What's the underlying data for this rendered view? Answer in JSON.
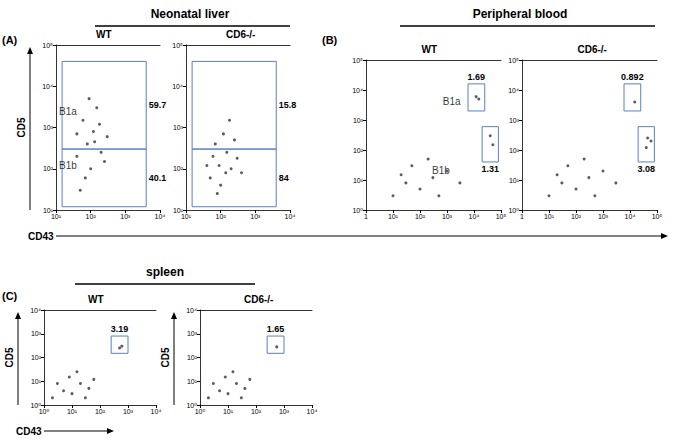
{
  "chart_data": [
    {
      "type": "scatter",
      "panel": "(A)",
      "group": "Neonatal liver",
      "title": "WT",
      "xlabel": "CD43",
      "ylabel": "CD5",
      "log": true,
      "xlim": [
        10,
        10000
      ],
      "xticks": [
        {
          "value": 10,
          "label": "10¹"
        },
        {
          "value": 100,
          "label": "10²"
        },
        {
          "value": 1000,
          "label": "10³"
        },
        {
          "value": 10000,
          "label": "10⁴"
        }
      ],
      "ylim": [
        10,
        100000
      ],
      "yticks": [
        {
          "value": 10,
          "label": "10¹"
        },
        {
          "value": 100,
          "label": "10²"
        },
        {
          "value": 1000,
          "label": "10³"
        },
        {
          "value": 10000,
          "label": "10⁴"
        },
        {
          "value": 100000,
          "label": "10⁵"
        }
      ],
      "points": [
        [
          40,
          200
        ],
        [
          80,
          400
        ],
        [
          120,
          800
        ],
        [
          60,
          1500
        ],
        [
          150,
          3000
        ],
        [
          100,
          100
        ],
        [
          200,
          250
        ],
        [
          70,
          60
        ],
        [
          300,
          600
        ],
        [
          50,
          30
        ],
        [
          180,
          1200
        ],
        [
          90,
          5000
        ],
        [
          250,
          150
        ],
        [
          130,
          450
        ],
        [
          40,
          700
        ]
      ],
      "gates": [
        {
          "x": [
            15,
            4000
          ],
          "y": [
            300,
            40000
          ],
          "value": 59.7
        },
        {
          "x": [
            15,
            4000
          ],
          "y": [
            12,
            300
          ],
          "value": 40.1
        }
      ],
      "annotations": [
        {
          "text": "B1a",
          "x": 22,
          "y": 2500
        },
        {
          "text": "B1b",
          "x": 22,
          "y": 120
        }
      ]
    },
    {
      "type": "scatter",
      "title": "CD6-/-",
      "log": true,
      "xlim": [
        10,
        10000
      ],
      "xticks": [
        {
          "value": 10,
          "label": "10¹"
        },
        {
          "value": 100,
          "label": "10²"
        },
        {
          "value": 1000,
          "label": "10³"
        },
        {
          "value": 10000,
          "label": "10⁴"
        }
      ],
      "ylim": [
        10,
        100000
      ],
      "yticks": [
        {
          "value": 10,
          "label": "10¹"
        },
        {
          "value": 100,
          "label": "10²"
        },
        {
          "value": 1000,
          "label": "10³"
        },
        {
          "value": 10000,
          "label": "10⁴"
        },
        {
          "value": 100000,
          "label": "10⁵"
        }
      ],
      "points": [
        [
          50,
          60
        ],
        [
          90,
          120
        ],
        [
          150,
          250
        ],
        [
          70,
          400
        ],
        [
          200,
          100
        ],
        [
          100,
          40
        ],
        [
          300,
          180
        ],
        [
          60,
          200
        ],
        [
          120,
          700
        ],
        [
          250,
          500
        ],
        [
          80,
          25
        ],
        [
          180,
          1500
        ],
        [
          400,
          80
        ],
        [
          40,
          120
        ],
        [
          140,
          80
        ]
      ],
      "gates": [
        {
          "x": [
            15,
            4000
          ],
          "y": [
            300,
            40000
          ],
          "value": 15.8
        },
        {
          "x": [
            15,
            4000
          ],
          "y": [
            12,
            300
          ],
          "value": 84
        }
      ],
      "annotations": []
    },
    {
      "type": "scatter",
      "panel": "(B)",
      "group": "Peripheral blood",
      "title": "WT",
      "log": true,
      "xlim": [
        1,
        100000
      ],
      "xticks": [
        1,
        {
          "value": 10,
          "label": "10¹"
        },
        {
          "value": 100,
          "label": "10²"
        },
        {
          "value": 1000,
          "label": "10³"
        },
        {
          "value": 10000,
          "label": "10⁴"
        },
        {
          "value": 100000,
          "label": "10⁵"
        }
      ],
      "ylim": [
        1,
        100000
      ],
      "yticks": [
        {
          "value": 1,
          "label": "10⁰"
        },
        {
          "value": 10,
          "label": "10¹"
        },
        {
          "value": 100,
          "label": "10²"
        },
        {
          "value": 1000,
          "label": "10³"
        },
        {
          "value": 10000,
          "label": "10⁴"
        },
        {
          "value": 100000,
          "label": "10⁵"
        }
      ],
      "points": [
        [
          10,
          3
        ],
        [
          30,
          8
        ],
        [
          100,
          5
        ],
        [
          300,
          12
        ],
        [
          50,
          30
        ],
        [
          1000,
          20
        ],
        [
          200,
          50
        ],
        [
          20,
          15
        ],
        [
          3000,
          8
        ],
        [
          500,
          3
        ],
        [
          15000,
          5000
        ],
        [
          12000,
          6000
        ],
        [
          40000,
          300
        ],
        [
          50000,
          150
        ]
      ],
      "gates": [
        {
          "x": [
            6000,
            25000
          ],
          "y": [
            2000,
            16000
          ],
          "value": 1.69
        },
        {
          "x": [
            20000,
            80000
          ],
          "y": [
            40,
            600
          ],
          "value": 1.31
        }
      ],
      "annotations": [
        {
          "text": "B1a",
          "x": 1500,
          "y": 4000
        },
        {
          "text": "B1b",
          "x": 600,
          "y": 20
        }
      ]
    },
    {
      "type": "scatter",
      "title": "CD6-/-",
      "log": true,
      "xlim": [
        1,
        100000
      ],
      "xticks": [
        1,
        {
          "value": 10,
          "label": "10¹"
        },
        {
          "value": 100,
          "label": "10²"
        },
        {
          "value": 1000,
          "label": "10³"
        },
        {
          "value": 10000,
          "label": "10⁴"
        },
        {
          "value": 100000,
          "label": "10⁵"
        }
      ],
      "ylim": [
        1,
        100000
      ],
      "yticks": [
        {
          "value": 1,
          "label": "10⁰"
        },
        {
          "value": 10,
          "label": "10¹"
        },
        {
          "value": 100,
          "label": "10²"
        },
        {
          "value": 1000,
          "label": "10³"
        },
        {
          "value": 10000,
          "label": "10⁴"
        },
        {
          "value": 100000,
          "label": "10⁵"
        }
      ],
      "points": [
        [
          10,
          3
        ],
        [
          30,
          8
        ],
        [
          100,
          5
        ],
        [
          300,
          12
        ],
        [
          50,
          30
        ],
        [
          1000,
          20
        ],
        [
          200,
          50
        ],
        [
          20,
          15
        ],
        [
          3000,
          8
        ],
        [
          500,
          3
        ],
        [
          15000,
          4000
        ],
        [
          45000,
          250
        ],
        [
          60000,
          200
        ],
        [
          40000,
          120
        ]
      ],
      "gates": [
        {
          "x": [
            6000,
            25000
          ],
          "y": [
            2000,
            16000
          ],
          "value": 0.892
        },
        {
          "x": [
            20000,
            80000
          ],
          "y": [
            40,
            600
          ],
          "value": 3.08
        }
      ],
      "annotations": []
    },
    {
      "type": "scatter",
      "panel": "(C)",
      "group": "spleen",
      "title": "WT",
      "xlabel": "CD43",
      "ylabel": "CD5",
      "log": true,
      "xlim": [
        1,
        10000
      ],
      "xticks": [
        {
          "value": 1,
          "label": "10⁰"
        },
        {
          "value": 10,
          "label": "10¹"
        },
        {
          "value": 100,
          "label": "10²"
        },
        {
          "value": 1000,
          "label": "10³"
        },
        {
          "value": 10000,
          "label": "10⁴"
        }
      ],
      "ylim": [
        1,
        10000
      ],
      "yticks": [
        {
          "value": 1,
          "label": "10⁰"
        },
        {
          "value": 10,
          "label": "10¹"
        },
        {
          "value": 100,
          "label": "10²"
        },
        {
          "value": 1000,
          "label": "10³"
        },
        {
          "value": 10000,
          "label": "10⁴"
        }
      ],
      "points": [
        [
          2,
          2
        ],
        [
          5,
          4
        ],
        [
          10,
          3
        ],
        [
          20,
          8
        ],
        [
          40,
          5
        ],
        [
          8,
          15
        ],
        [
          3,
          8
        ],
        [
          60,
          12
        ],
        [
          15,
          25
        ],
        [
          30,
          2
        ],
        [
          500,
          250
        ],
        [
          600,
          300
        ]
      ],
      "gates": [
        {
          "x": [
            250,
            1000
          ],
          "y": [
            150,
            800
          ],
          "value": 3.19
        }
      ],
      "annotations": []
    },
    {
      "type": "scatter",
      "title": "CD6-/-",
      "ylabel": "CD5",
      "log": true,
      "xlim": [
        1,
        10000
      ],
      "xticks": [
        {
          "value": 1,
          "label": "10⁰"
        },
        {
          "value": 10,
          "label": "10¹"
        },
        {
          "value": 100,
          "label": "10²"
        },
        {
          "value": 1000,
          "label": "10³"
        },
        {
          "value": 10000,
          "label": "10⁴"
        }
      ],
      "ylim": [
        1,
        10000
      ],
      "yticks": [
        {
          "value": 1,
          "label": "10⁰"
        },
        {
          "value": 10,
          "label": "10¹"
        },
        {
          "value": 100,
          "label": "10²"
        },
        {
          "value": 1000,
          "label": "10³"
        },
        {
          "value": 10000,
          "label": "10⁴"
        }
      ],
      "points": [
        [
          2,
          2
        ],
        [
          5,
          4
        ],
        [
          10,
          3
        ],
        [
          20,
          8
        ],
        [
          40,
          5
        ],
        [
          8,
          15
        ],
        [
          3,
          8
        ],
        [
          60,
          12
        ],
        [
          15,
          25
        ],
        [
          30,
          2
        ],
        [
          550,
          280
        ]
      ],
      "gates": [
        {
          "x": [
            250,
            1000
          ],
          "y": [
            150,
            800
          ],
          "value": 1.65
        }
      ],
      "annotations": []
    }
  ]
}
